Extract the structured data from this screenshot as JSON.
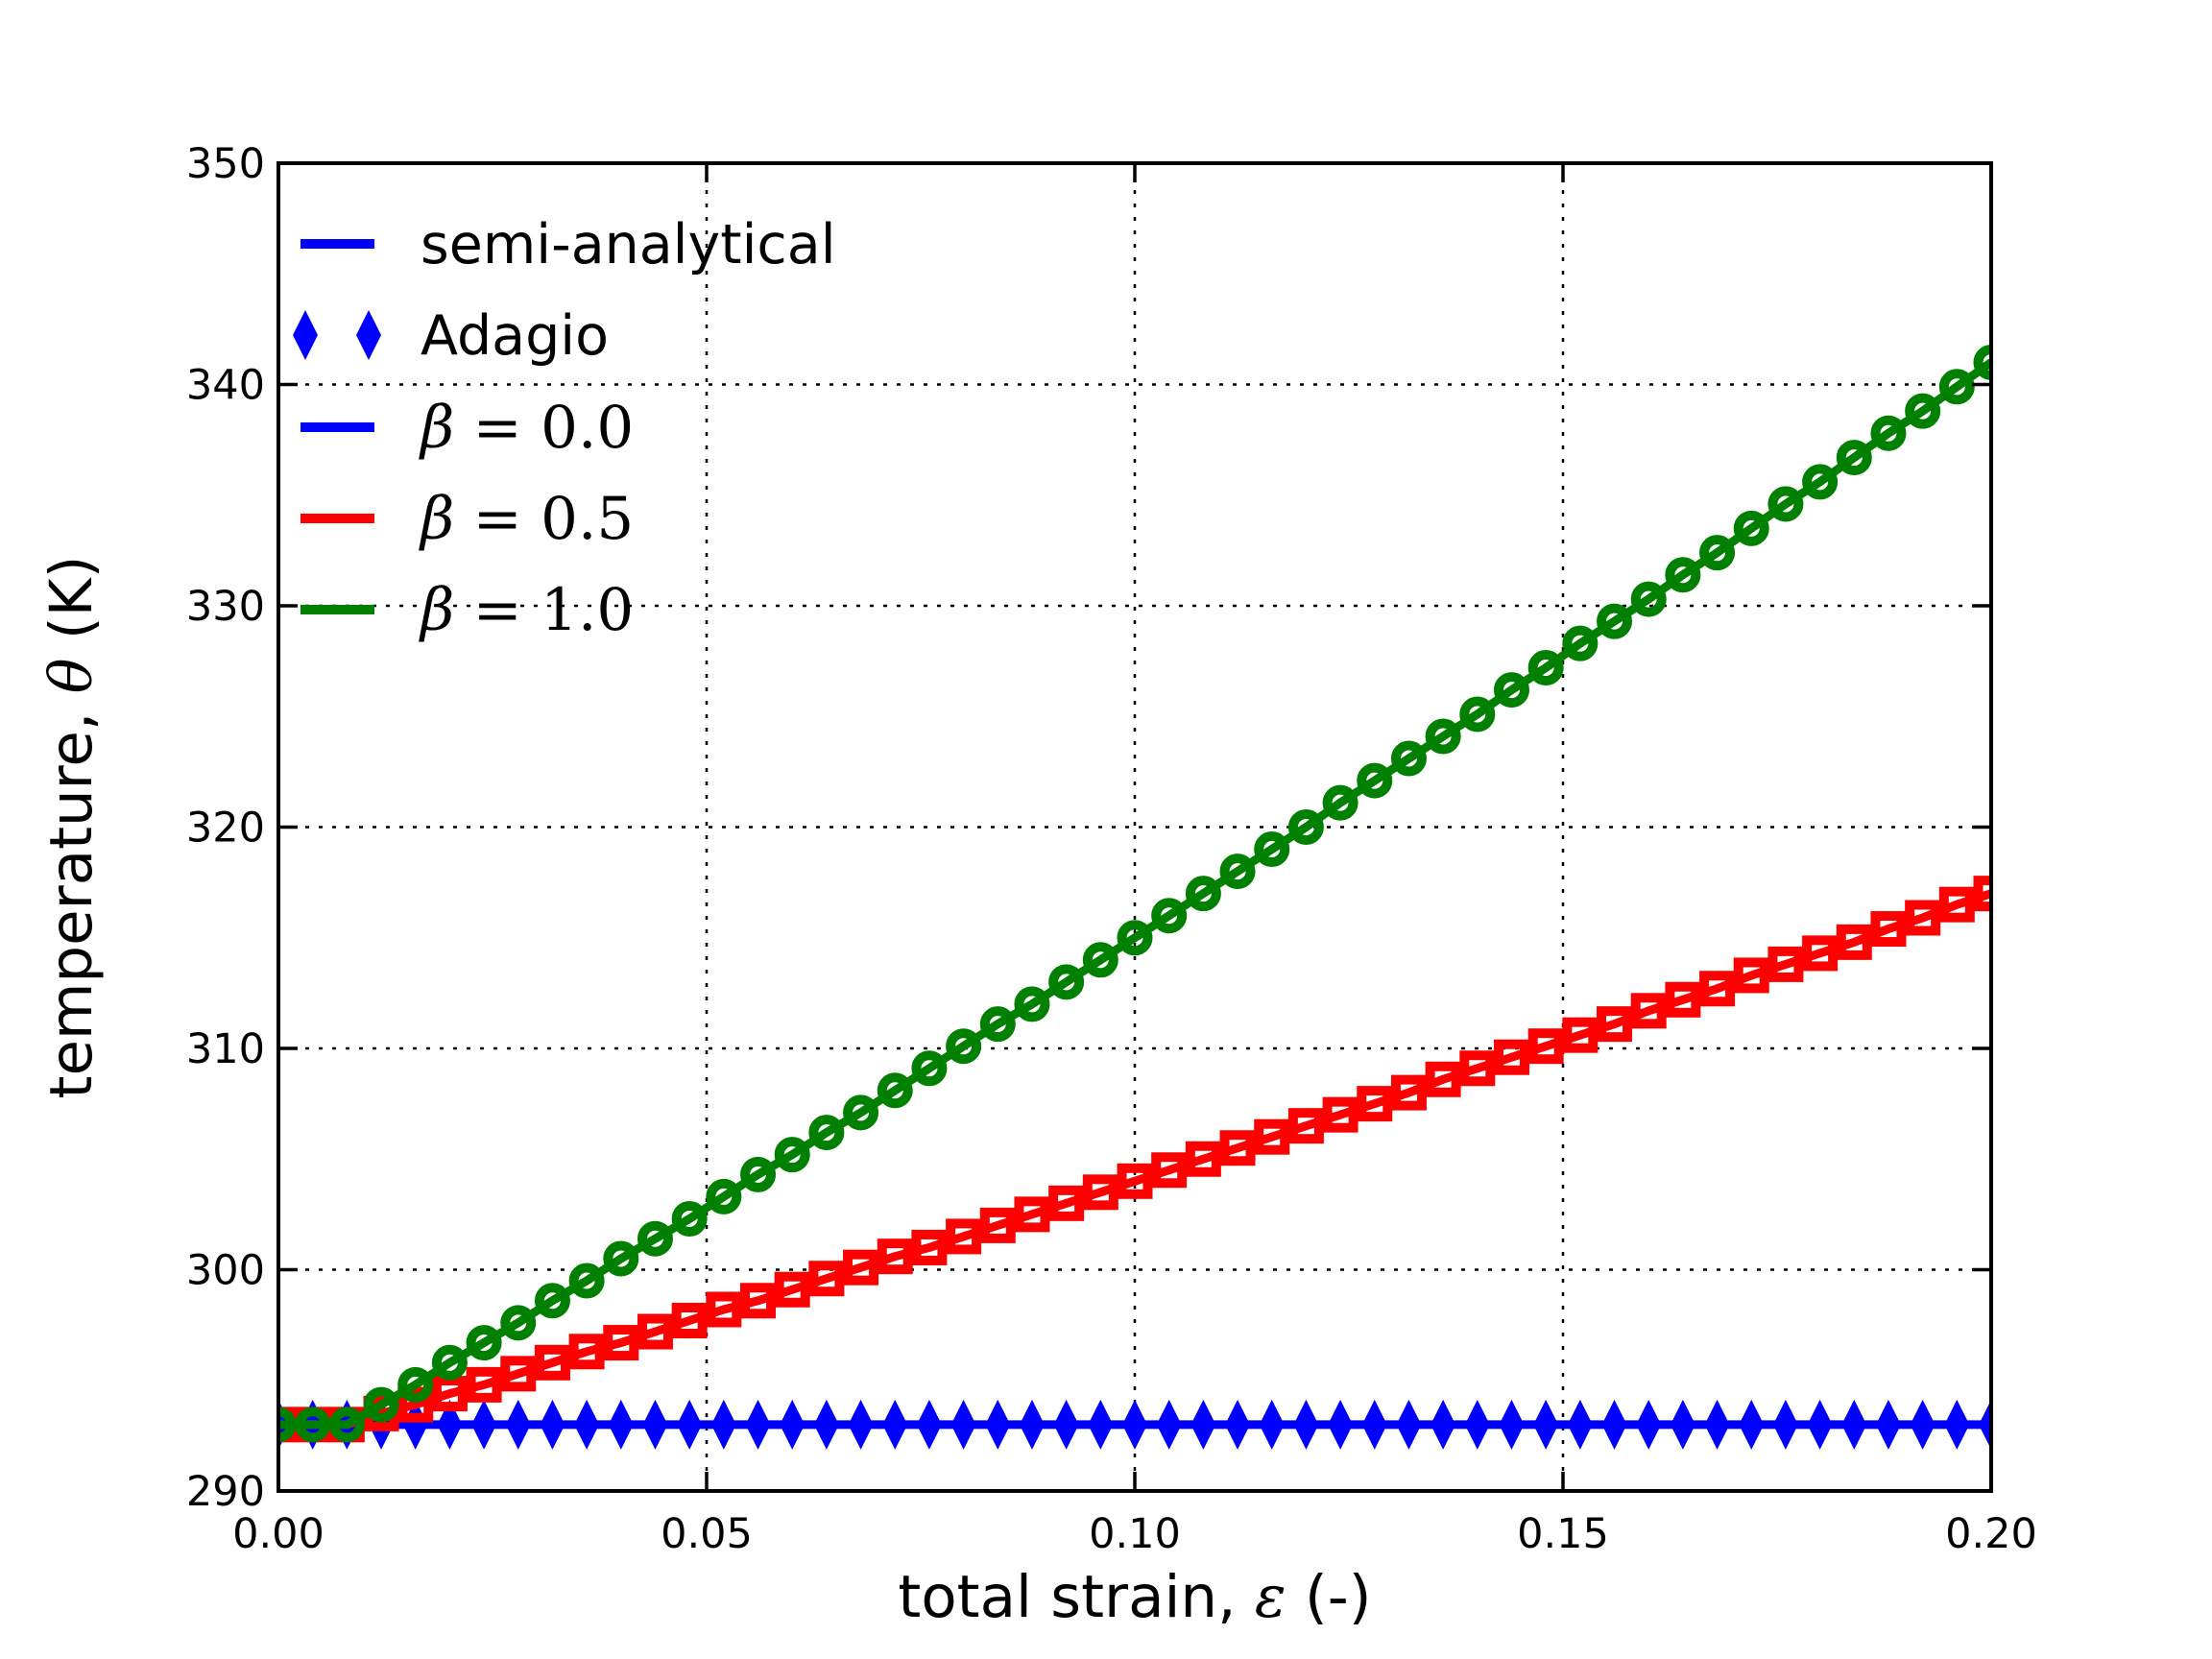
{
  "figure": {
    "background": "#ffffff"
  },
  "chart_data": {
    "type": "line",
    "title": "",
    "xlabel": "total strain, ε (-)",
    "xlabel_parts": [
      {
        "t": "total strain, ",
        "f": "sans"
      },
      {
        "t": "ε",
        "f": "math"
      },
      {
        "t": " (-)",
        "f": "sans"
      }
    ],
    "ylabel": "temperature, θ (K)",
    "ylabel_parts": [
      {
        "t": "temperature, ",
        "f": "sans"
      },
      {
        "t": "θ",
        "f": "math"
      },
      {
        "t": " (K)",
        "f": "sans"
      }
    ],
    "xlim": [
      0.0,
      0.2
    ],
    "ylim": [
      290,
      350
    ],
    "xtick_values": [
      0.0,
      0.05,
      0.1,
      0.15,
      0.2
    ],
    "xtick_labels": [
      "0.00",
      "0.05",
      "0.10",
      "0.15",
      "0.20"
    ],
    "ytick_values": [
      290,
      300,
      310,
      320,
      330,
      340,
      350
    ],
    "ytick_labels": [
      "290",
      "300",
      "310",
      "320",
      "330",
      "340",
      "350"
    ],
    "grid": {
      "visible": true,
      "style": "dotted",
      "color": "#000000"
    },
    "line_meaning": "semi-analytical",
    "marker_meaning": "Adagio",
    "x": [
      0,
      0.004,
      0.008,
      0.012,
      0.016,
      0.02,
      0.024,
      0.028,
      0.032,
      0.036,
      0.04,
      0.044,
      0.048,
      0.052,
      0.056,
      0.06,
      0.064,
      0.068,
      0.072,
      0.076,
      0.08,
      0.084,
      0.088,
      0.092,
      0.096,
      0.1,
      0.104,
      0.108,
      0.112,
      0.116,
      0.12,
      0.124,
      0.128,
      0.132,
      0.136,
      0.14,
      0.144,
      0.148,
      0.152,
      0.156,
      0.16,
      0.164,
      0.168,
      0.172,
      0.176,
      0.18,
      0.184,
      0.188,
      0.192,
      0.196,
      0.2
    ],
    "series": [
      {
        "id": "beta-0-0",
        "name": "β = 0.0",
        "beta": 0.0,
        "color": "#0000ff",
        "marker": "thin-diamond",
        "marker_filled": true,
        "y": [
          293,
          293,
          293,
          293,
          293,
          293,
          293,
          293,
          293,
          293,
          293,
          293,
          293,
          293,
          293,
          293,
          293,
          293,
          293,
          293,
          293,
          293,
          293,
          293,
          293,
          293,
          293,
          293,
          293,
          293,
          293,
          293,
          293,
          293,
          293,
          293,
          293,
          293,
          293,
          293,
          293,
          293,
          293,
          293,
          293,
          293,
          293,
          293,
          293,
          293,
          293
        ]
      },
      {
        "id": "beta-0-5",
        "name": "β = 0.5",
        "beta": 0.5,
        "color": "#ff0000",
        "marker": "square",
        "marker_filled": false,
        "y": [
          293,
          293,
          293,
          293.5,
          293.9,
          294.4,
          294.8,
          295.3,
          295.8,
          296.3,
          296.7,
          297.2,
          297.7,
          298.2,
          298.6,
          299.1,
          299.6,
          300.1,
          300.6,
          301,
          301.5,
          302,
          302.5,
          303,
          303.5,
          304,
          304.5,
          305,
          305.5,
          306,
          306.5,
          307,
          307.5,
          308,
          308.6,
          309.1,
          309.6,
          310.1,
          310.6,
          311.1,
          311.7,
          312.2,
          312.7,
          313.3,
          313.8,
          314.3,
          314.8,
          315.4,
          315.9,
          316.5,
          317
        ]
      },
      {
        "id": "beta-1-0",
        "name": "β = 1.0",
        "beta": 1.0,
        "color": "#008000",
        "marker": "circle",
        "marker_filled": false,
        "y": [
          293,
          293,
          293,
          293.9,
          294.8,
          295.8,
          296.7,
          297.6,
          298.6,
          299.5,
          300.5,
          301.4,
          302.3,
          303.3,
          304.3,
          305.2,
          306.2,
          307.1,
          308.1,
          309.1,
          310.1,
          311.1,
          312,
          313,
          314,
          315,
          316,
          317,
          318,
          319,
          320,
          321.1,
          322.1,
          323.1,
          324.1,
          325.1,
          326.2,
          327.2,
          328.3,
          329.3,
          330.3,
          331.4,
          332.4,
          333.5,
          334.6,
          335.6,
          336.7,
          337.8,
          338.8,
          339.9,
          341
        ]
      }
    ],
    "legend": {
      "position": "upper-left",
      "frame": false,
      "entries": [
        {
          "id": "semi-analytical",
          "label": "semi-analytical",
          "font": "sans",
          "handle": "line",
          "color": "#0000ff"
        },
        {
          "id": "adagio",
          "label": "Adagio",
          "font": "sans",
          "handle": "markers",
          "marker": "thin-diamond",
          "color": "#0000ff"
        },
        {
          "id": "beta-0-0",
          "label": "β = 0.0",
          "sym": "β",
          "rest": " = 0.0",
          "font": "math",
          "handle": "line",
          "color": "#0000ff"
        },
        {
          "id": "beta-0-5",
          "label": "β = 0.5",
          "sym": "β",
          "rest": " = 0.5",
          "font": "math",
          "handle": "line",
          "color": "#ff0000"
        },
        {
          "id": "beta-1-0",
          "label": "β = 1.0",
          "sym": "β",
          "rest": " = 1.0",
          "font": "math",
          "handle": "line",
          "color": "#008000"
        }
      ]
    },
    "colors": {
      "blue": "#0000ff",
      "red": "#ff0000",
      "green": "#008000",
      "axis": "#000000"
    }
  }
}
